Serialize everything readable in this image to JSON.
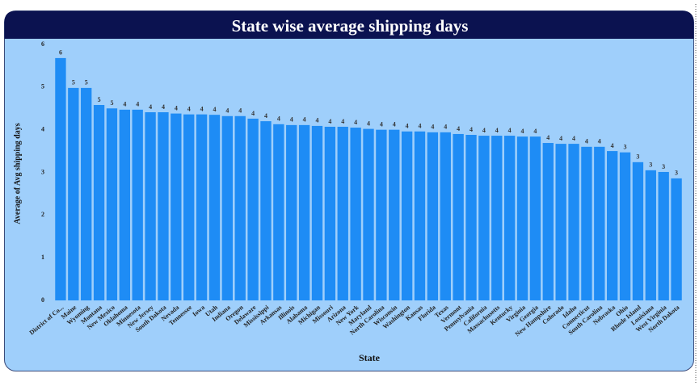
{
  "chart_data": {
    "type": "bar",
    "title": "State wise average shipping days",
    "x_label": "State",
    "y_label": "Average of Avg shipping days",
    "color": "#1e8cf5",
    "categories": [
      "District of Co...",
      "Maine",
      "Wyoming",
      "Montana",
      "New Mexico",
      "Oklahoma",
      "Minnesota",
      "New Jersey",
      "South Dakota",
      "Nevada",
      "Tennessee",
      "Iowa",
      "Utah",
      "Indiana",
      "Oregon",
      "Delaware",
      "Mississippi",
      "Arkansas",
      "Illinois",
      "Alabama",
      "Michigan",
      "Missouri",
      "Arizona",
      "New York",
      "Maryland",
      "North Carolina",
      "Wisconsin",
      "Washington",
      "Kansas",
      "Florida",
      "Texas",
      "Vermont",
      "Pennsylvania",
      "California",
      "Massachusetts",
      "Kentucky",
      "Virginia",
      "Georgia",
      "New Hampshire",
      "Colorado",
      "Idaho",
      "Connecticut",
      "South Carolina",
      "Nebraska",
      "Ohio",
      "Rhode Island",
      "Louisiana",
      "West Virginia",
      "North Dakota"
    ],
    "values": [
      5.68,
      4.98,
      4.98,
      4.58,
      4.5,
      4.47,
      4.47,
      4.41,
      4.41,
      4.38,
      4.36,
      4.36,
      4.35,
      4.32,
      4.32,
      4.26,
      4.2,
      4.13,
      4.11,
      4.11,
      4.09,
      4.07,
      4.07,
      4.05,
      4.02,
      4.0,
      4.0,
      3.96,
      3.96,
      3.94,
      3.94,
      3.9,
      3.88,
      3.86,
      3.86,
      3.86,
      3.84,
      3.84,
      3.69,
      3.67,
      3.67,
      3.6,
      3.6,
      3.5,
      3.47,
      3.24,
      3.05,
      3.01,
      2.86
    ],
    "value_labels": [
      "6",
      "5",
      "5",
      "5",
      "5",
      "4",
      "4",
      "4",
      "4",
      "4",
      "4",
      "4",
      "4",
      "4",
      "4",
      "4",
      "4",
      "4",
      "4",
      "4",
      "4",
      "4",
      "4",
      "4",
      "4",
      "4",
      "4",
      "4",
      "4",
      "4",
      "4",
      "4",
      "4",
      "4",
      "4",
      "4",
      "4",
      "4",
      "4",
      "4",
      "4",
      "4",
      "4",
      "4",
      "3",
      "3",
      "3",
      "3",
      "3"
    ],
    "ylim": [
      0,
      6
    ],
    "yticks": [
      0,
      1,
      2,
      3,
      4,
      5,
      6
    ],
    "grid": false
  }
}
